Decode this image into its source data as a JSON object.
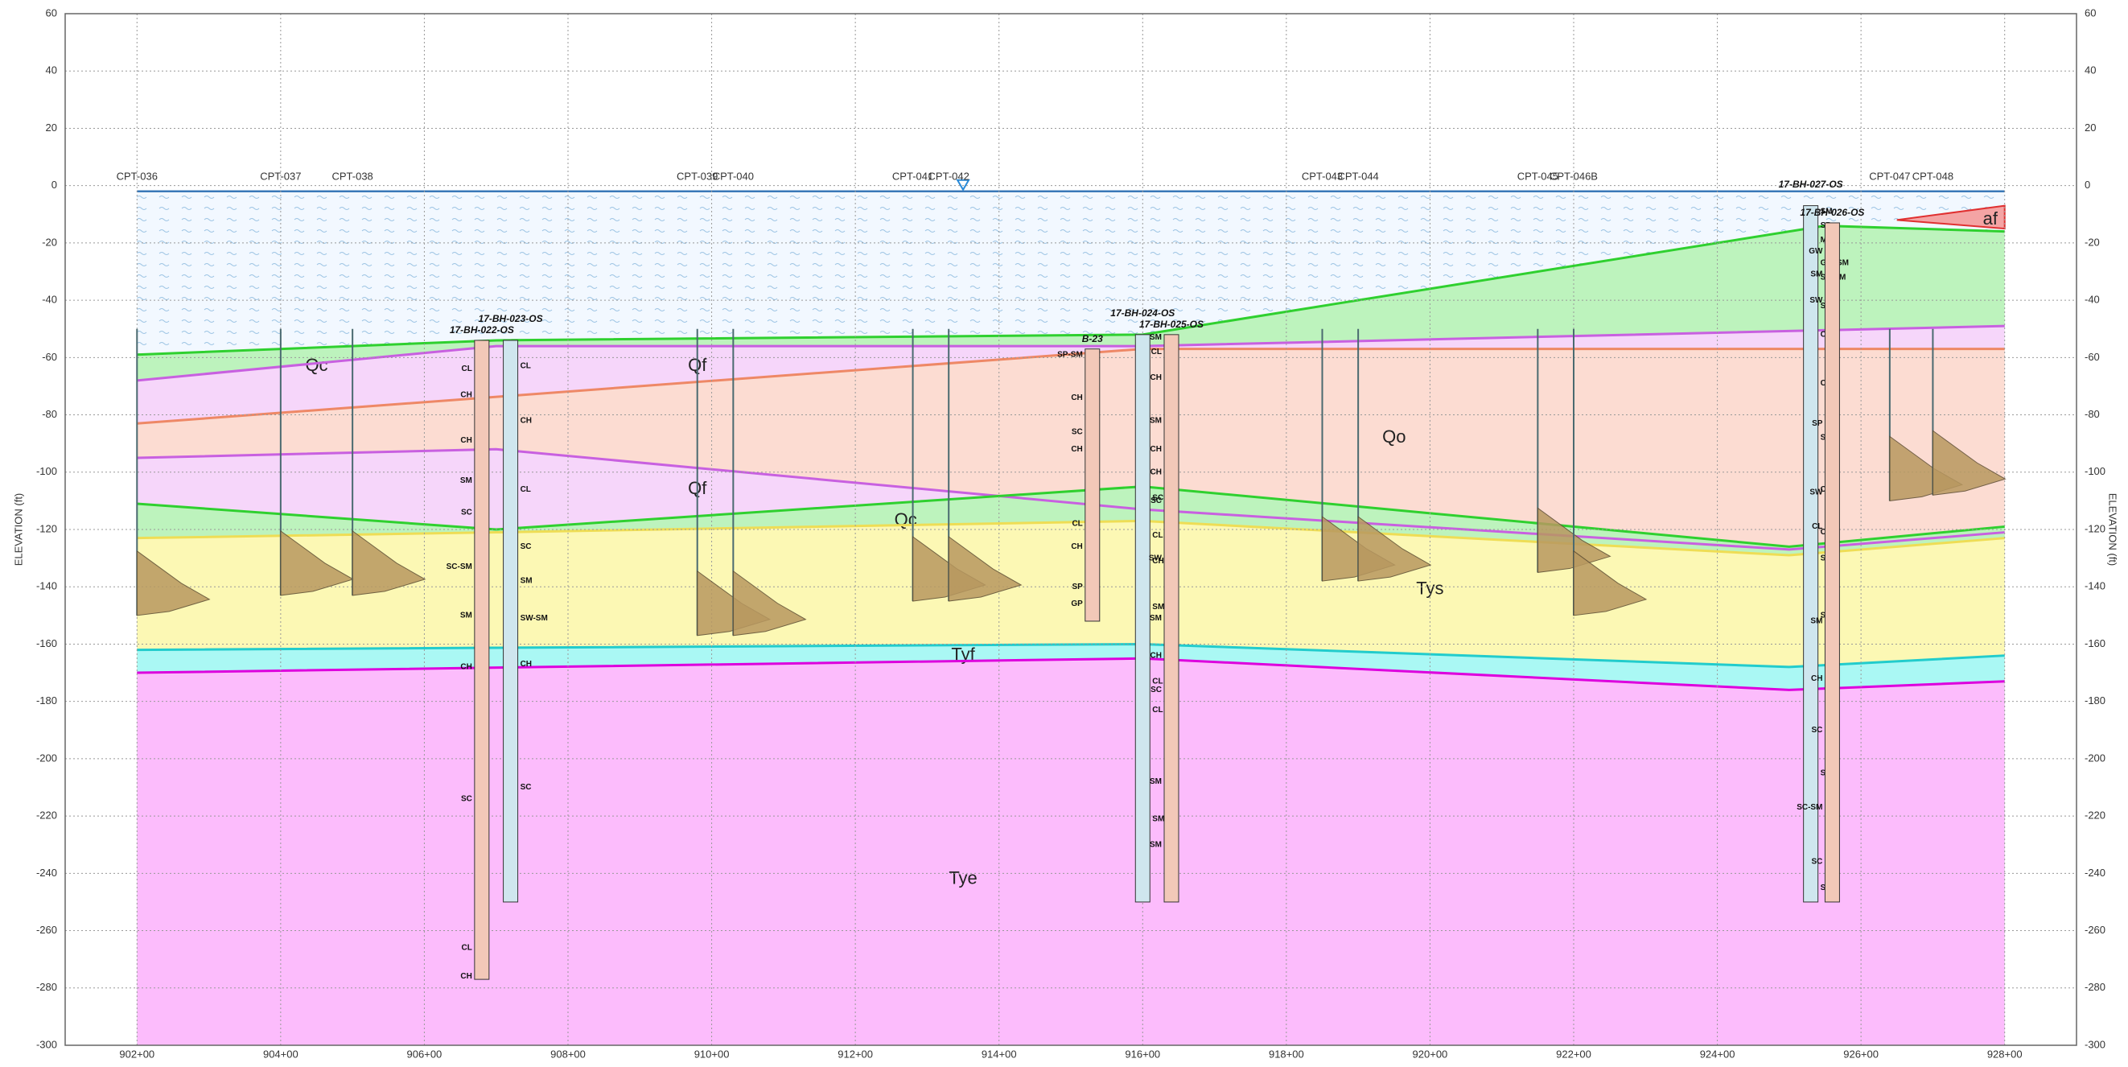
{
  "axes": {
    "xlim": [
      901,
      929
    ],
    "xticks": [
      {
        "value": 902,
        "label": "902+00"
      },
      {
        "value": 904,
        "label": "904+00"
      },
      {
        "value": 906,
        "label": "906+00"
      },
      {
        "value": 908,
        "label": "908+00"
      },
      {
        "value": 910,
        "label": "910+00"
      },
      {
        "value": 912,
        "label": "912+00"
      },
      {
        "value": 914,
        "label": "914+00"
      },
      {
        "value": 916,
        "label": "916+00"
      },
      {
        "value": 918,
        "label": "918+00"
      },
      {
        "value": 920,
        "label": "920+00"
      },
      {
        "value": 922,
        "label": "922+00"
      },
      {
        "value": 924,
        "label": "924+00"
      },
      {
        "value": 926,
        "label": "926+00"
      },
      {
        "value": 928,
        "label": "928+00"
      }
    ],
    "ylim": [
      -300,
      60
    ],
    "yticks": [
      -300,
      -280,
      -260,
      -240,
      -220,
      -200,
      -180,
      -160,
      -140,
      -120,
      -100,
      -80,
      -60,
      -40,
      -20,
      0,
      20,
      40,
      60
    ],
    "ylabel": "ELEVATION (ft)"
  },
  "water_surface": {
    "x": [
      902,
      928
    ],
    "y": [
      -2,
      -2
    ]
  },
  "layers": [
    {
      "label": "Qc",
      "fill": "#bdf3bd",
      "line": "#2fd02f",
      "x": [
        902,
        907,
        916,
        925.5,
        928
      ],
      "y": [
        -59,
        -54,
        -52,
        -14,
        -16
      ]
    },
    {
      "label": "Qf",
      "fill": "#f6d6fa",
      "line": "#c860e0",
      "x": [
        902,
        907,
        916,
        928
      ],
      "y": [
        -68,
        -56,
        -56,
        -49
      ]
    },
    {
      "label": "Qo",
      "fill": "#fcdcd2",
      "line": "#ee8866",
      "x": [
        902,
        916,
        928
      ],
      "y": [
        -83,
        -57,
        -57
      ]
    },
    {
      "label": "Qf",
      "fill": "#f6d6fa",
      "line": "#c860e0",
      "x": [
        902,
        907,
        916,
        925,
        928
      ],
      "y": [
        -95,
        -92,
        -113,
        -127,
        -121
      ]
    },
    {
      "label": "Qc",
      "fill": "#bdf3bd",
      "line": "#2fd02f",
      "x": [
        902,
        907,
        916,
        925,
        928
      ],
      "y": [
        -111,
        -120,
        -105,
        -126,
        -119
      ]
    },
    {
      "label": "Tys",
      "fill": "#fcf8b4",
      "line": "#eedd55",
      "x": [
        902,
        907,
        916,
        925,
        928
      ],
      "y": [
        -123,
        -121,
        -117,
        -129,
        -123
      ]
    },
    {
      "label": "Tyf",
      "fill": "#aaf8f4",
      "line": "#22cccc",
      "x": [
        902,
        916,
        925,
        928
      ],
      "y": [
        -162,
        -160,
        -168,
        -164
      ]
    },
    {
      "label": "Tye",
      "fill": "#fcbcfc",
      "line": "#dd00dd",
      "x": [
        902,
        916,
        925,
        928
      ],
      "y": [
        -170,
        -165,
        -176,
        -173
      ]
    }
  ],
  "af": {
    "label": "af",
    "fill": "#f4a4a4",
    "line": "#e03030",
    "x": [
      926.5,
      928,
      928
    ],
    "y": [
      -12,
      -7,
      -15
    ]
  },
  "cpts": [
    {
      "name": "CPT-036",
      "station": 902,
      "bottom": -150
    },
    {
      "name": "CPT-037",
      "station": 904,
      "bottom": -143
    },
    {
      "name": "CPT-038",
      "station": 905,
      "bottom": -143
    },
    {
      "name": "CPT-039",
      "station": 909.8,
      "bottom": -157
    },
    {
      "name": "CPT-040",
      "station": 910.3,
      "bottom": -157
    },
    {
      "name": "CPT-041",
      "station": 912.8,
      "bottom": -145
    },
    {
      "name": "CPT-042",
      "station": 913.3,
      "bottom": -145
    },
    {
      "name": "CPT-043",
      "station": 918.5,
      "bottom": -138
    },
    {
      "name": "CPT-044",
      "station": 919,
      "bottom": -138
    },
    {
      "name": "CPT-045",
      "station": 921.5,
      "bottom": -135
    },
    {
      "name": "CPT-046B",
      "station": 922,
      "bottom": -150
    },
    {
      "name": "CPT-047",
      "station": 926.4,
      "bottom": -110
    },
    {
      "name": "CPT-048",
      "station": 927,
      "bottom": -108
    }
  ],
  "borings": [
    {
      "name": "17-BH-022-OS",
      "station": 906.8,
      "top": -54,
      "bottom": -277,
      "soils": [
        [
          "CL",
          -64
        ],
        [
          "CH",
          -73
        ],
        [
          "CH",
          -89
        ],
        [
          "SM",
          -103
        ],
        [
          "SC",
          -114
        ],
        [
          "SC-SM",
          -133
        ],
        [
          "SM",
          -150
        ],
        [
          "CH",
          -168
        ],
        [
          "SC",
          -214
        ],
        [
          "CL",
          -266
        ],
        [
          "CH",
          -276
        ]
      ]
    },
    {
      "name": "17-BH-023-OS",
      "station": 907.2,
      "top": -54,
      "bottom": -250,
      "soils": [
        [
          "CL",
          -63
        ],
        [
          "CH",
          -82
        ],
        [
          "CL",
          -106
        ],
        [
          "SC",
          -126
        ],
        [
          "SM",
          -138
        ],
        [
          "SW-SM",
          -151
        ],
        [
          "CH",
          -167
        ],
        [
          "SC",
          -210
        ]
      ]
    },
    {
      "name": "B-23",
      "station": 915.3,
      "top": -57,
      "bottom": -152,
      "soils": [
        [
          "SP-SM",
          -59
        ],
        [
          "CH",
          -74
        ],
        [
          "SC",
          -86
        ],
        [
          "CH",
          -92
        ],
        [
          "CL",
          -118
        ],
        [
          "CH",
          -126
        ],
        [
          "SP",
          -140
        ],
        [
          "GP",
          -146
        ]
      ]
    },
    {
      "name": "17-BH-024-OS",
      "station": 916,
      "top": -52,
      "bottom": -250,
      "soils": [
        [
          "SC",
          -109
        ],
        [
          "CL",
          -122
        ],
        [
          "CH",
          -131
        ],
        [
          "SM",
          -147
        ],
        [
          "CL",
          -173
        ],
        [
          "CL",
          -183
        ],
        [
          "SM",
          -221
        ]
      ]
    },
    {
      "name": "17-BH-025-OS",
      "station": 916.4,
      "top": -52,
      "bottom": -250,
      "soils": [
        [
          "SM",
          -53
        ],
        [
          "CL",
          -58
        ],
        [
          "CH",
          -67
        ],
        [
          "SM",
          -82
        ],
        [
          "CH",
          -92
        ],
        [
          "CH",
          -100
        ],
        [
          "SC",
          -110
        ],
        [
          "SW",
          -130
        ],
        [
          "SM",
          -151
        ],
        [
          "CH",
          -164
        ],
        [
          "SC",
          -176
        ],
        [
          "SM",
          -208
        ],
        [
          "SM",
          -230
        ]
      ]
    },
    {
      "name": "17-BH-027-OS",
      "station": 925.3,
      "top": -7,
      "bottom": -250,
      "soils": [
        [
          "SM",
          -9
        ],
        [
          "SP",
          -14
        ],
        [
          "ML",
          -19
        ],
        [
          "GW-SM",
          -27
        ],
        [
          "SP-SM",
          -32
        ],
        [
          "SC",
          -42
        ],
        [
          "CL",
          -52
        ],
        [
          "CH",
          -69
        ],
        [
          "SC",
          -88
        ],
        [
          "CH",
          -106
        ],
        [
          "CL",
          -121
        ],
        [
          "SP",
          -130
        ],
        [
          "SM",
          -150
        ],
        [
          "SC",
          -205
        ],
        [
          "SM",
          -245
        ]
      ]
    },
    {
      "name": "17-BH-026-OS",
      "station": 925.6,
      "top": -13,
      "bottom": -250,
      "soils": [
        [
          "GW",
          -23
        ],
        [
          "SM",
          -31
        ],
        [
          "SW",
          -40
        ],
        [
          "SP",
          -83
        ],
        [
          "SW",
          -107
        ],
        [
          "CL",
          -119
        ],
        [
          "SM",
          -152
        ],
        [
          "CH",
          -172
        ],
        [
          "SC",
          -190
        ],
        [
          "SC-SM",
          -217
        ],
        [
          "SC",
          -236
        ]
      ]
    }
  ]
}
